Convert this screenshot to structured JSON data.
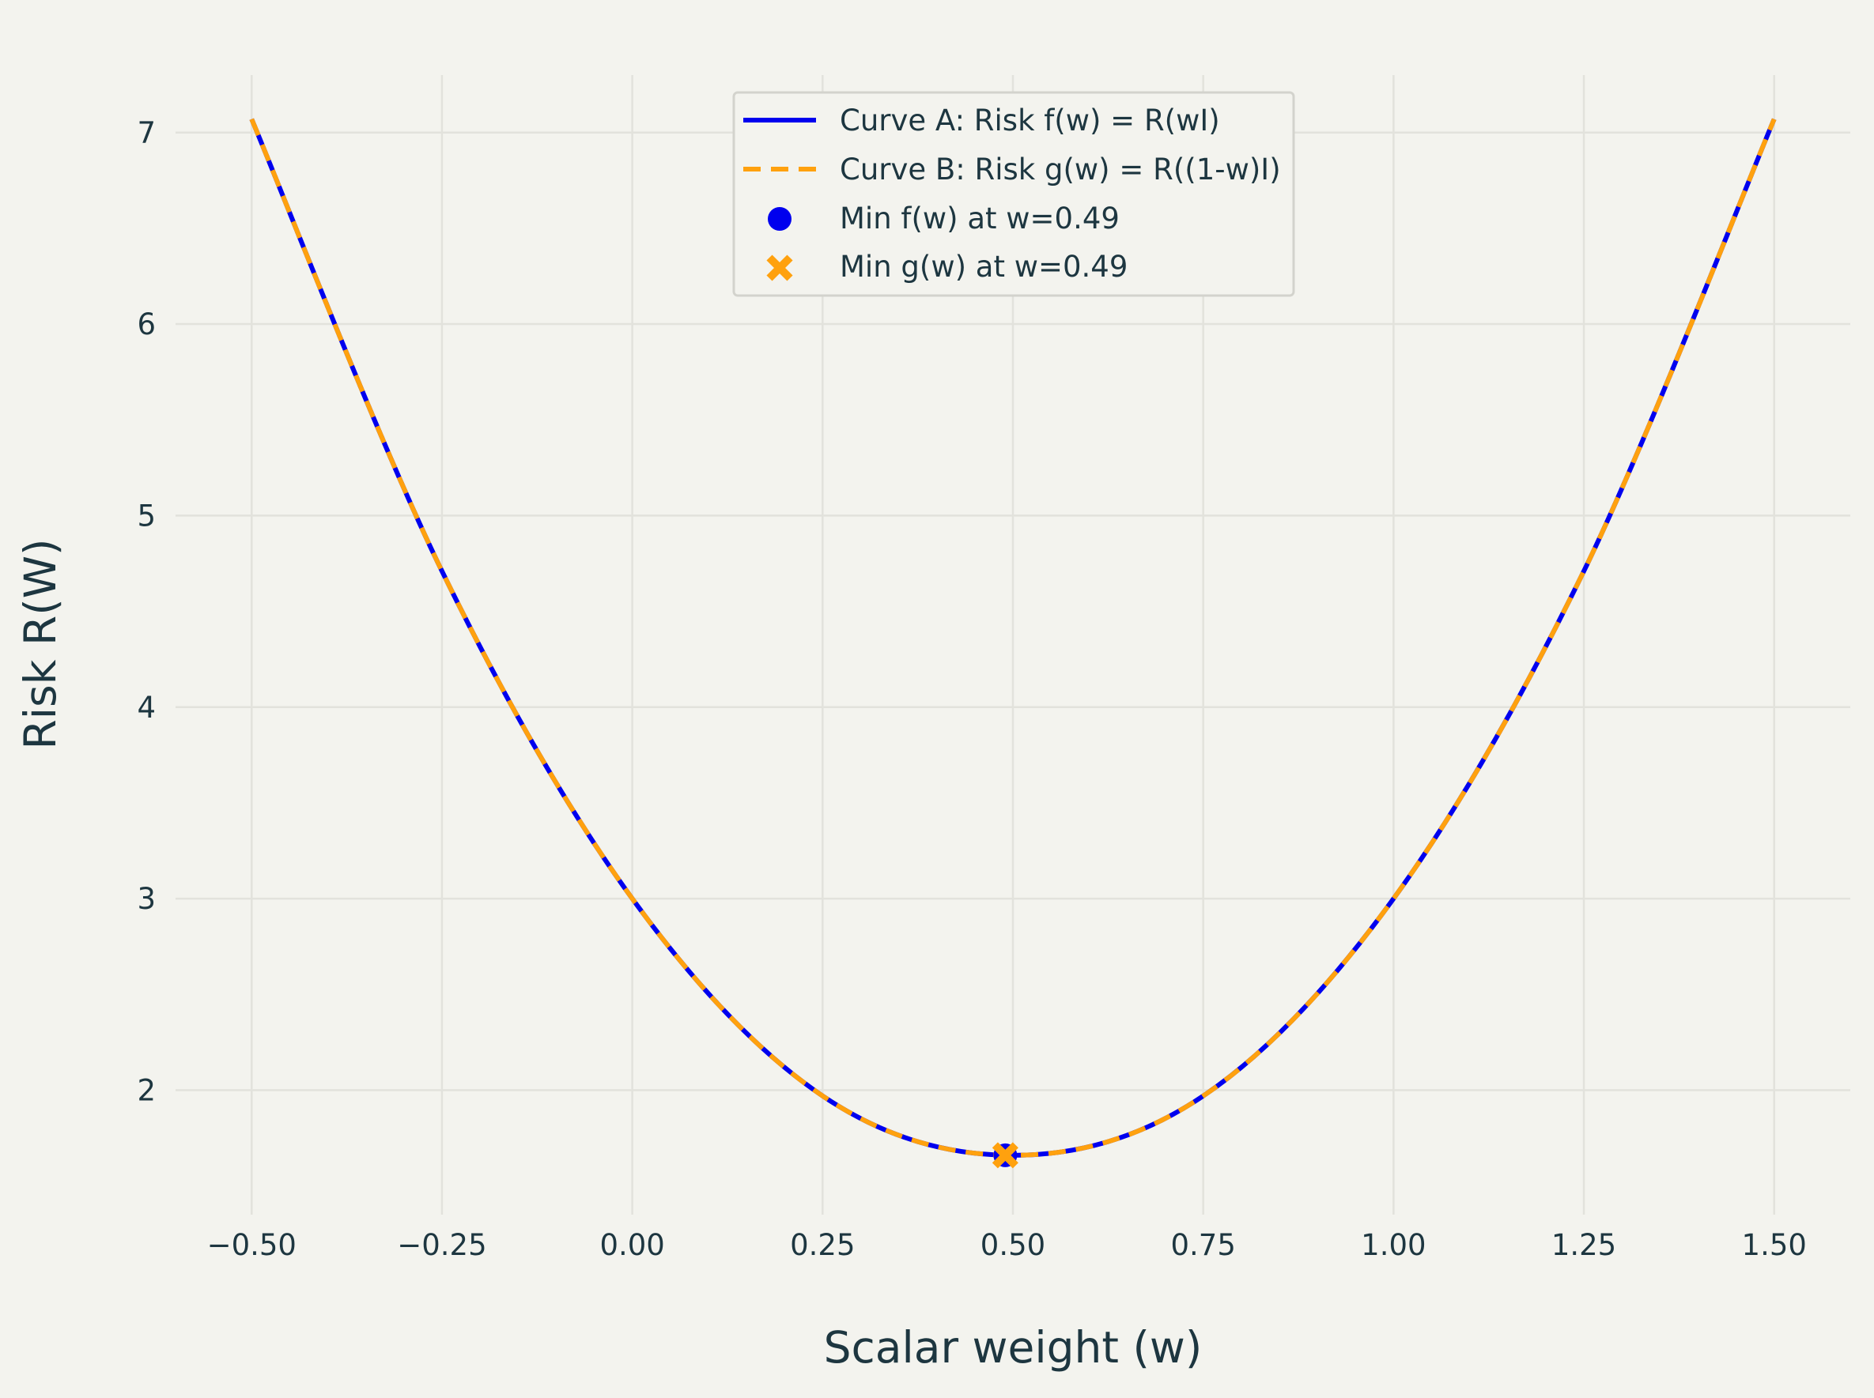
{
  "chart_data": {
    "type": "line",
    "title": "",
    "xlabel": "Scalar weight (w)",
    "ylabel": "Risk R(W)",
    "xlim": [
      -0.6,
      1.6
    ],
    "ylim": [
      1.35,
      7.3
    ],
    "xticks": [
      -0.5,
      -0.25,
      0.0,
      0.25,
      0.5,
      0.75,
      1.0,
      1.25,
      1.5
    ],
    "xtick_labels": [
      "−0.50",
      "−0.25",
      "0.00",
      "0.25",
      "0.50",
      "0.75",
      "1.00",
      "1.25",
      "1.50"
    ],
    "yticks": [
      2,
      3,
      4,
      5,
      6,
      7
    ],
    "ytick_labels": [
      "2",
      "3",
      "4",
      "5",
      "6",
      "7"
    ],
    "grid": true,
    "legend_position": "top-center",
    "x": [
      -0.5,
      -0.25,
      0.0,
      0.25,
      0.5,
      0.75,
      1.0,
      1.25,
      1.5
    ],
    "series": [
      {
        "name": "Curve A: Risk f(w) = R(wI)",
        "style": "solid",
        "color": "#0000ee",
        "values": [
          7.07,
          4.71,
          3.0,
          1.97,
          1.66,
          1.97,
          3.0,
          4.71,
          7.07
        ]
      },
      {
        "name": "Curve B: Risk g(w) = R((1-w)I)",
        "style": "dashed",
        "color": "#ffa10e",
        "values": [
          7.07,
          4.71,
          3.0,
          1.97,
          1.66,
          1.97,
          3.0,
          4.71,
          7.07
        ]
      }
    ],
    "markers": [
      {
        "name": "Min f(w) at w=0.49",
        "shape": "circle",
        "color": "#0000ee",
        "x": 0.49,
        "y": 1.66
      },
      {
        "name": "Min g(w) at w=0.49",
        "shape": "x",
        "color": "#ffa10e",
        "x": 0.49,
        "y": 1.66
      }
    ]
  }
}
